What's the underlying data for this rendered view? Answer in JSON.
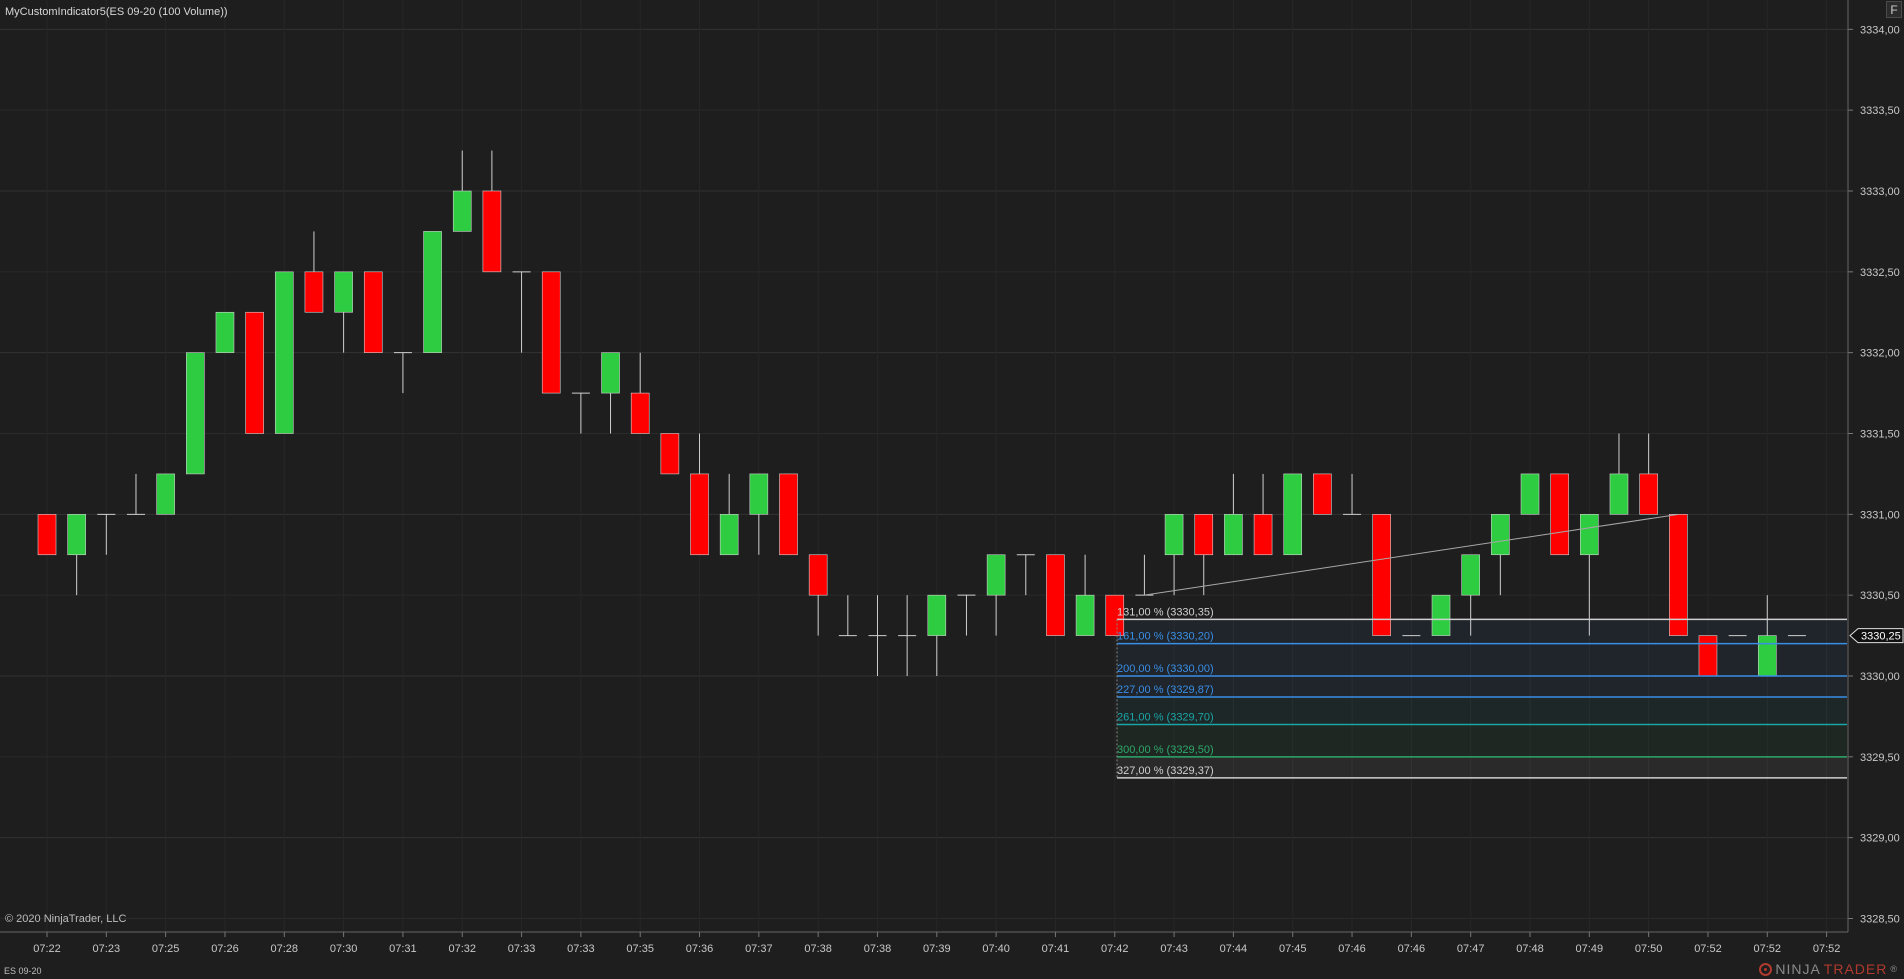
{
  "window": {
    "title": "MyCustomIndicator5(ES 09-20 (100 Volume))",
    "copyright": "© 2020 NinjaTrader, LLC",
    "instrument_tab": "ES 09-20",
    "price_scale_button": "F",
    "logo": {
      "part1": "NINJA",
      "part2": "TRADER",
      "suffix": "®"
    }
  },
  "colors": {
    "background": "#1e1e1e",
    "up_candle": "#2ecc40",
    "down_candle": "#ff0000",
    "grid": "#2b2b2b",
    "axis_text": "#c8c8c8"
  },
  "price_axis": {
    "labels": [
      "3334,00",
      "3333,50",
      "3333,00",
      "3332,50",
      "3332,00",
      "3331,50",
      "3331,00",
      "3330,50",
      "3330,00",
      "3329,50",
      "3329,00",
      "3328,50"
    ],
    "current_price": "3330,25"
  },
  "chart_data": {
    "type": "candlestick",
    "ylim": [
      3328.4,
      3334.1
    ],
    "x_labels": [
      "07:22",
      "07:23",
      "07:25",
      "07:26",
      "07:28",
      "07:30",
      "07:31",
      "07:32",
      "07:33",
      "07:33",
      "07:35",
      "07:36",
      "07:37",
      "07:38",
      "07:38",
      "07:39",
      "07:40",
      "07:41",
      "07:42",
      "07:43",
      "07:44",
      "07:45",
      "07:46",
      "07:46",
      "07:47",
      "07:48",
      "07:49",
      "07:50",
      "07:52",
      "07:52",
      "07:52"
    ],
    "candles": [
      {
        "o": 3331.0,
        "h": 3331.0,
        "l": 3330.75,
        "c": 3330.75
      },
      {
        "o": 3330.75,
        "h": 3331.0,
        "l": 3330.5,
        "c": 3331.0
      },
      {
        "o": 3331.0,
        "h": 3331.0,
        "l": 3330.75,
        "c": 3331.0
      },
      {
        "o": 3331.0,
        "h": 3331.25,
        "l": 3331.0,
        "c": 3331.0
      },
      {
        "o": 3331.0,
        "h": 3331.25,
        "l": 3331.0,
        "c": 3331.25
      },
      {
        "o": 3331.25,
        "h": 3332.0,
        "l": 3331.25,
        "c": 3332.0
      },
      {
        "o": 3332.0,
        "h": 3332.25,
        "l": 3332.0,
        "c": 3332.25
      },
      {
        "o": 3332.25,
        "h": 3332.25,
        "l": 3331.5,
        "c": 3331.5
      },
      {
        "o": 3331.5,
        "h": 3332.5,
        "l": 3331.5,
        "c": 3332.5
      },
      {
        "o": 3332.5,
        "h": 3332.75,
        "l": 3332.25,
        "c": 3332.25
      },
      {
        "o": 3332.25,
        "h": 3332.5,
        "l": 3332.0,
        "c": 3332.5
      },
      {
        "o": 3332.5,
        "h": 3332.5,
        "l": 3332.0,
        "c": 3332.0
      },
      {
        "o": 3332.0,
        "h": 3332.0,
        "l": 3331.75,
        "c": 3332.0
      },
      {
        "o": 3332.0,
        "h": 3332.75,
        "l": 3332.0,
        "c": 3332.75
      },
      {
        "o": 3332.75,
        "h": 3333.25,
        "l": 3332.75,
        "c": 3333.0
      },
      {
        "o": 3333.0,
        "h": 3333.25,
        "l": 3332.5,
        "c": 3332.5
      },
      {
        "o": 3332.5,
        "h": 3332.5,
        "l": 3332.0,
        "c": 3332.5
      },
      {
        "o": 3332.5,
        "h": 3332.5,
        "l": 3331.75,
        "c": 3331.75
      },
      {
        "o": 3331.75,
        "h": 3331.75,
        "l": 3331.5,
        "c": 3331.75
      },
      {
        "o": 3331.75,
        "h": 3332.0,
        "l": 3331.5,
        "c": 3332.0
      },
      {
        "o": 3331.75,
        "h": 3332.0,
        "l": 3331.5,
        "c": 3331.5
      },
      {
        "o": 3331.5,
        "h": 3331.5,
        "l": 3331.25,
        "c": 3331.25
      },
      {
        "o": 3331.25,
        "h": 3331.5,
        "l": 3330.75,
        "c": 3330.75
      },
      {
        "o": 3330.75,
        "h": 3331.25,
        "l": 3330.75,
        "c": 3331.0
      },
      {
        "o": 3331.0,
        "h": 3331.25,
        "l": 3330.75,
        "c": 3331.25
      },
      {
        "o": 3331.25,
        "h": 3331.25,
        "l": 3330.75,
        "c": 3330.75
      },
      {
        "o": 3330.75,
        "h": 3330.75,
        "l": 3330.25,
        "c": 3330.5
      },
      {
        "o": 3330.25,
        "h": 3330.5,
        "l": 3330.25,
        "c": 3330.25
      },
      {
        "o": 3330.25,
        "h": 3330.5,
        "l": 3330.0,
        "c": 3330.25
      },
      {
        "o": 3330.25,
        "h": 3330.5,
        "l": 3330.0,
        "c": 3330.25
      },
      {
        "o": 3330.25,
        "h": 3330.5,
        "l": 3330.0,
        "c": 3330.5
      },
      {
        "o": 3330.5,
        "h": 3330.5,
        "l": 3330.25,
        "c": 3330.5
      },
      {
        "o": 3330.5,
        "h": 3330.75,
        "l": 3330.25,
        "c": 3330.75
      },
      {
        "o": 3330.75,
        "h": 3330.75,
        "l": 3330.5,
        "c": 3330.75
      },
      {
        "o": 3330.75,
        "h": 3330.75,
        "l": 3330.25,
        "c": 3330.25
      },
      {
        "o": 3330.25,
        "h": 3330.75,
        "l": 3330.25,
        "c": 3330.5
      },
      {
        "o": 3330.5,
        "h": 3330.5,
        "l": 3330.25,
        "c": 3330.25
      },
      {
        "o": 3330.5,
        "h": 3330.75,
        "l": 3330.5,
        "c": 3330.5
      },
      {
        "o": 3330.75,
        "h": 3331.0,
        "l": 3330.5,
        "c": 3331.0
      },
      {
        "o": 3331.0,
        "h": 3331.0,
        "l": 3330.5,
        "c": 3330.75
      },
      {
        "o": 3330.75,
        "h": 3331.25,
        "l": 3330.75,
        "c": 3331.0
      },
      {
        "o": 3331.0,
        "h": 3331.25,
        "l": 3330.75,
        "c": 3330.75
      },
      {
        "o": 3330.75,
        "h": 3331.25,
        "l": 3330.75,
        "c": 3331.25
      },
      {
        "o": 3331.25,
        "h": 3331.25,
        "l": 3331.0,
        "c": 3331.0
      },
      {
        "o": 3331.0,
        "h": 3331.25,
        "l": 3331.0,
        "c": 3331.0
      },
      {
        "o": 3331.0,
        "h": 3331.0,
        "l": 3330.25,
        "c": 3330.25
      },
      {
        "o": 3330.25,
        "h": 3330.25,
        "l": 3330.25,
        "c": 3330.25
      },
      {
        "o": 3330.25,
        "h": 3330.5,
        "l": 3330.25,
        "c": 3330.5
      },
      {
        "o": 3330.5,
        "h": 3330.75,
        "l": 3330.25,
        "c": 3330.75
      },
      {
        "o": 3330.75,
        "h": 3331.0,
        "l": 3330.5,
        "c": 3331.0
      },
      {
        "o": 3331.0,
        "h": 3331.25,
        "l": 3331.0,
        "c": 3331.25
      },
      {
        "o": 3331.25,
        "h": 3331.25,
        "l": 3330.75,
        "c": 3330.75
      },
      {
        "o": 3330.75,
        "h": 3331.0,
        "l": 3330.25,
        "c": 3331.0
      },
      {
        "o": 3331.0,
        "h": 3331.5,
        "l": 3331.0,
        "c": 3331.25
      },
      {
        "o": 3331.25,
        "h": 3331.5,
        "l": 3331.0,
        "c": 3331.0
      },
      {
        "o": 3331.0,
        "h": 3331.0,
        "l": 3330.25,
        "c": 3330.25
      },
      {
        "o": 3330.25,
        "h": 3330.25,
        "l": 3330.0,
        "c": 3330.0
      },
      {
        "o": 3330.25,
        "h": 3330.25,
        "l": 3330.25,
        "c": 3330.25
      },
      {
        "o": 3330.0,
        "h": 3330.5,
        "l": 3330.0,
        "c": 3330.25
      },
      {
        "o": 3330.25,
        "h": 3330.25,
        "l": 3330.25,
        "c": 3330.25
      }
    ],
    "fib_levels": [
      {
        "label": "131,00 % (3330,35)",
        "price": 3330.35,
        "color": "#d0d0d0"
      },
      {
        "label": "161,00 % (3330,20)",
        "price": 3330.2,
        "color": "#3a8ee6"
      },
      {
        "label": "200,00 % (3330,00)",
        "price": 3330.0,
        "color": "#3a8ee6"
      },
      {
        "label": "227,00 % (3329,87)",
        "price": 3329.87,
        "color": "#3a8ee6"
      },
      {
        "label": "261,00 % (3329,70)",
        "price": 3329.7,
        "color": "#1aa6a6"
      },
      {
        "label": "300,00 % (3329,50)",
        "price": 3329.5,
        "color": "#2ea86a"
      },
      {
        "label": "327,00 % (3329,37)",
        "price": 3329.37,
        "color": "#d0d0d0"
      }
    ],
    "trend_line": {
      "from_index": 37,
      "from_price": 3330.5,
      "to_index": 55,
      "to_price": 3331.0
    }
  }
}
